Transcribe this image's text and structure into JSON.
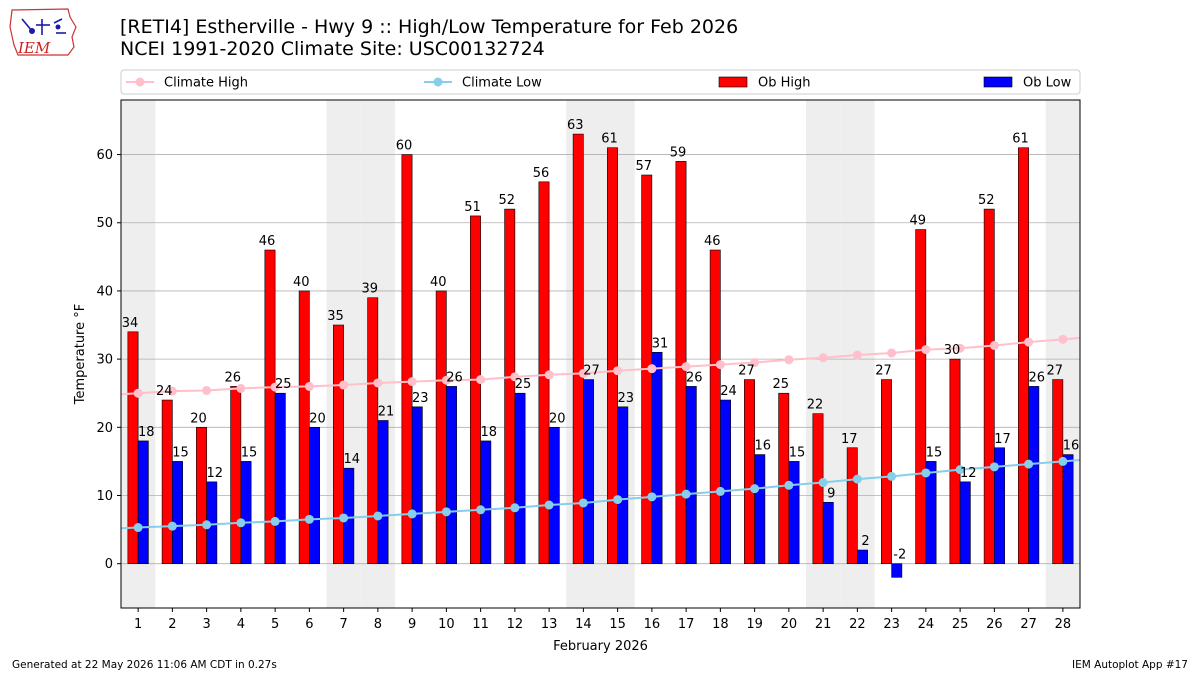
{
  "header": {
    "title_line1": "[RETI4] Estherville - Hwy 9 :: High/Low Temperature for Feb 2026",
    "title_line2": "NCEI 1991-2020 Climate Site: USC00132724"
  },
  "logo": {
    "text": "IEM"
  },
  "footer": {
    "left": "Generated at 22 May 2026 11:06 AM CDT in 0.27s",
    "right": "IEM Autoplot App #17"
  },
  "colors": {
    "ob_high": "#ff0000",
    "ob_low": "#0000ff",
    "climate_high": "#ffc0cb",
    "climate_low": "#87ceeb",
    "weekend_shade": "#eeeeee",
    "grid": "#b0b0b0"
  },
  "chart_data": {
    "type": "bar",
    "xlabel": "February 2026",
    "ylabel": "Temperature °F",
    "ylim": [
      -6.5,
      68
    ],
    "yticks": [
      0,
      10,
      20,
      30,
      40,
      50,
      60
    ],
    "grid": "horizontal",
    "legend_position": "top",
    "categories": [
      1,
      2,
      3,
      4,
      5,
      6,
      7,
      8,
      9,
      10,
      11,
      12,
      13,
      14,
      15,
      16,
      17,
      18,
      19,
      20,
      21,
      22,
      23,
      24,
      25,
      26,
      27,
      28
    ],
    "weekend_days": [
      1,
      7,
      8,
      14,
      15,
      21,
      22,
      28
    ],
    "series": [
      {
        "name": "Ob High",
        "kind": "bar",
        "values": [
          34,
          24,
          20,
          26,
          46,
          40,
          35,
          39,
          60,
          40,
          51,
          52,
          56,
          63,
          61,
          57,
          59,
          46,
          27,
          25,
          22,
          17,
          27,
          49,
          30,
          52,
          61,
          27
        ],
        "labels": [
          "34",
          "24",
          "20",
          "26",
          "46",
          "40",
          "35",
          "39",
          "60",
          "40",
          "51",
          "52",
          "56",
          "63",
          "61",
          "57",
          "59",
          "46",
          "27",
          "25",
          "22",
          "17",
          "27",
          "49",
          "30",
          "52",
          "61",
          "27"
        ]
      },
      {
        "name": "Ob Low",
        "kind": "bar",
        "values": [
          18,
          15,
          12,
          15,
          25,
          20,
          14,
          21,
          23,
          26,
          18,
          25,
          20,
          27,
          23,
          31,
          26,
          24,
          16,
          15,
          9,
          2,
          -2,
          15,
          12,
          17,
          26,
          16
        ],
        "labels": [
          "18",
          "15",
          "12",
          "15",
          "25",
          "20",
          "14",
          "21",
          "23",
          "26",
          "18",
          "25",
          "20",
          "27",
          "23",
          "31",
          "26",
          "24",
          "16",
          "15",
          "9",
          "2",
          "-2",
          "15",
          "12",
          "17",
          "26",
          "16"
        ]
      },
      {
        "name": "Climate High",
        "kind": "line",
        "values": [
          25.0,
          25.3,
          25.4,
          25.7,
          25.9,
          26.0,
          26.2,
          26.5,
          26.7,
          26.9,
          27.0,
          27.4,
          27.7,
          27.9,
          28.3,
          28.6,
          28.9,
          29.2,
          29.5,
          29.9,
          30.2,
          30.6,
          30.9,
          31.4,
          31.6,
          32.0,
          32.5,
          32.9
        ]
      },
      {
        "name": "Climate Low",
        "kind": "line",
        "values": [
          5.3,
          5.5,
          5.7,
          6.0,
          6.2,
          6.5,
          6.7,
          7.0,
          7.3,
          7.6,
          7.9,
          8.2,
          8.6,
          8.9,
          9.4,
          9.8,
          10.2,
          10.6,
          11.0,
          11.5,
          11.9,
          12.4,
          12.8,
          13.3,
          13.8,
          14.2,
          14.6,
          15.0
        ]
      }
    ]
  }
}
